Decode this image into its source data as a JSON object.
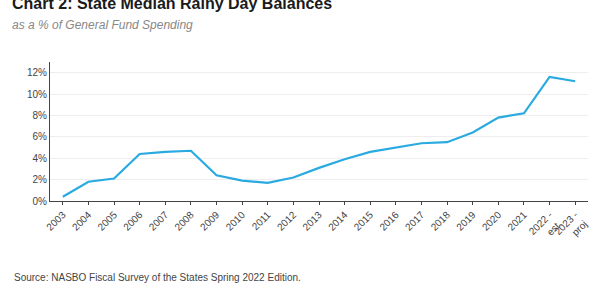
{
  "chart_data": {
    "type": "line",
    "title": "Chart 2: State Median Rainy Day Balances",
    "subtitle": "as a % of General Fund Spending",
    "annotations": [
      "Source: NASBO Fiscal Survey of the States Spring 2022 Edition."
    ],
    "categories": [
      "2003",
      "2004",
      "2005",
      "2006",
      "2007",
      "2008",
      "2009",
      "2010",
      "2011",
      "2012",
      "2013",
      "2014",
      "2015",
      "2016",
      "2017",
      "2018",
      "2019",
      "2020",
      "2021",
      "2022 -\nest.",
      "2023 -\nproj"
    ],
    "values": [
      0.4,
      1.8,
      2.1,
      4.4,
      4.6,
      4.7,
      2.4,
      1.9,
      1.7,
      2.2,
      3.1,
      3.9,
      4.6,
      5.0,
      5.4,
      5.5,
      6.4,
      7.8,
      8.2,
      11.6,
      11.2
    ],
    "color": "#29aae1",
    "ylim": [
      0,
      13
    ],
    "yticks": [
      {
        "value": 0,
        "label": "0%"
      },
      {
        "value": 2,
        "label": "2%"
      },
      {
        "value": 4,
        "label": "4%"
      },
      {
        "value": 6,
        "label": "6%"
      },
      {
        "value": 8,
        "label": "8%"
      },
      {
        "value": 10,
        "label": "10%"
      },
      {
        "value": 12,
        "label": "12%"
      }
    ],
    "grid": true
  }
}
